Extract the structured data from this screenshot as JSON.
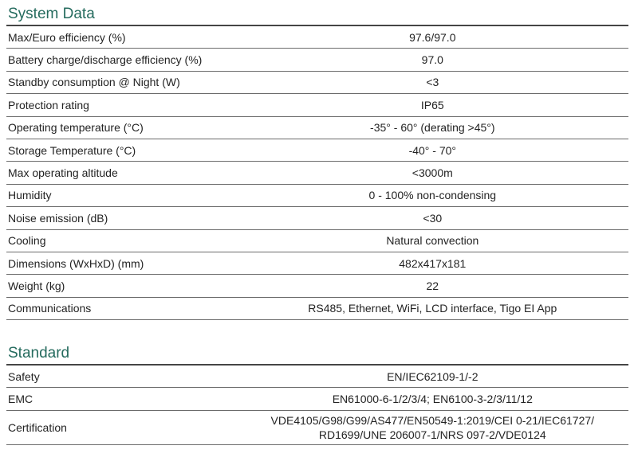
{
  "colors": {
    "heading_text": "#256b5e",
    "heading_rule": "#454545",
    "row_rule": "#6b6b6b",
    "body_text": "#232323",
    "background": "#ffffff"
  },
  "sections": [
    {
      "title": "System Data",
      "rows": [
        {
          "label": "Max/Euro efficiency (%)",
          "value": "97.6/97.0"
        },
        {
          "label": "Battery charge/discharge efficiency (%)",
          "value": "97.0"
        },
        {
          "label": "Standby consumption @ Night (W)",
          "value": "<3"
        },
        {
          "label": "Protection rating",
          "value": "IP65"
        },
        {
          "label": "Operating temperature (°C)",
          "value": "-35° - 60° (derating >45°)"
        },
        {
          "label": "Storage Temperature (°C)",
          "value": "-40° - 70°"
        },
        {
          "label": "Max operating altitude",
          "value": "<3000m"
        },
        {
          "label": "Humidity",
          "value": "0 - 100% non-condensing"
        },
        {
          "label": "Noise emission (dB)",
          "value": "<30"
        },
        {
          "label": "Cooling",
          "value": "Natural convection"
        },
        {
          "label": "Dimensions (WxHxD) (mm)",
          "value": "482x417x181"
        },
        {
          "label": "Weight (kg)",
          "value": "22"
        },
        {
          "label": "Communications",
          "value": "RS485, Ethernet, WiFi, LCD interface, Tigo EI App"
        }
      ]
    },
    {
      "title": "Standard",
      "rows": [
        {
          "label": "Safety",
          "value": "EN/IEC62109-1/-2"
        },
        {
          "label": "EMC",
          "value": "EN61000-6-1/2/3/4; EN6100-3-2/3/11/12"
        },
        {
          "label": "Certification",
          "value_lines": [
            "VDE4105/G98/G99/AS477/EN50549-1:2019/CEI 0-21/IEC61727/",
            "RD1699/UNE 206007-1/NRS 097-2/VDE0124"
          ]
        }
      ]
    }
  ]
}
